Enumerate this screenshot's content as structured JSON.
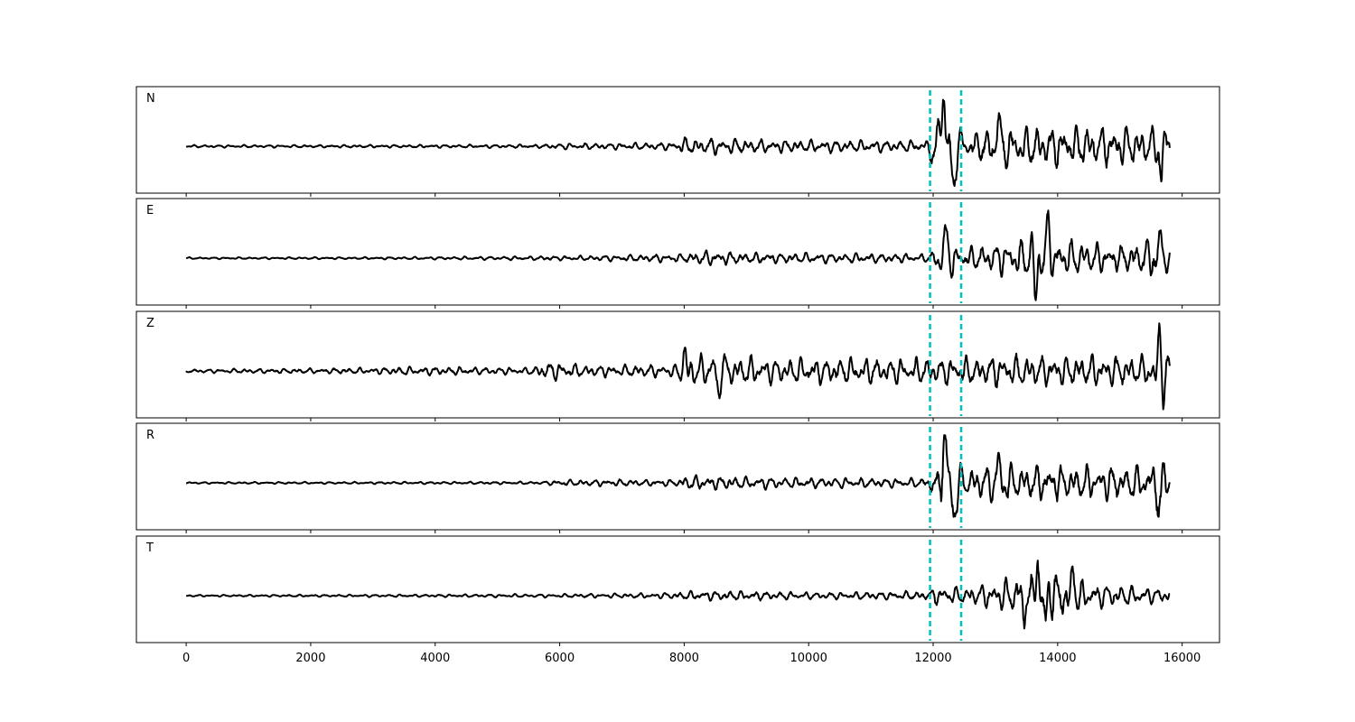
{
  "chart_data": {
    "type": "line",
    "title": "",
    "xlabel": "",
    "ylabel": "",
    "xlim": [
      -800,
      16600
    ],
    "xticks": [
      0,
      2000,
      4000,
      6000,
      8000,
      10000,
      12000,
      14000,
      16000
    ],
    "xtick_labels": [
      "0",
      "2000",
      "4000",
      "6000",
      "8000",
      "10000",
      "12000",
      "14000",
      "16000"
    ],
    "x_range": [
      0,
      15800
    ],
    "grid": false,
    "legend": "none",
    "markers": [
      {
        "x": 11950,
        "color": "#00c0c0",
        "style": "dashed"
      },
      {
        "x": 12450,
        "color": "#00c0c0",
        "style": "dashed"
      }
    ],
    "series": [
      {
        "name": "N",
        "color": "#000000",
        "envelope": [
          [
            0,
            0.03
          ],
          [
            2000,
            0.03
          ],
          [
            4000,
            0.035
          ],
          [
            5700,
            0.04
          ],
          [
            6000,
            0.07
          ],
          [
            7000,
            0.07
          ],
          [
            7900,
            0.1
          ],
          [
            8000,
            0.2
          ],
          [
            9500,
            0.15
          ],
          [
            11900,
            0.13
          ],
          [
            12000,
            0.4
          ],
          [
            12150,
            0.95
          ],
          [
            12300,
            0.45
          ],
          [
            12450,
            0.3
          ],
          [
            13000,
            0.45
          ],
          [
            14000,
            0.5
          ],
          [
            15000,
            0.45
          ],
          [
            15500,
            0.45
          ],
          [
            15650,
            0.75
          ],
          [
            15800,
            0.35
          ]
        ],
        "events": [
          [
            12150,
            1.0,
            120
          ],
          [
            12330,
            -0.78,
            90
          ],
          [
            15660,
            -0.8,
            60
          ],
          [
            13050,
            0.6,
            80
          ]
        ]
      },
      {
        "name": "E",
        "color": "#000000",
        "envelope": [
          [
            0,
            0.02
          ],
          [
            3000,
            0.025
          ],
          [
            5000,
            0.04
          ],
          [
            6500,
            0.06
          ],
          [
            8000,
            0.1
          ],
          [
            8300,
            0.17
          ],
          [
            9000,
            0.13
          ],
          [
            10000,
            0.12
          ],
          [
            11900,
            0.1
          ],
          [
            12200,
            0.35
          ],
          [
            12450,
            0.25
          ],
          [
            13000,
            0.35
          ],
          [
            13700,
            0.5
          ],
          [
            14000,
            0.45
          ],
          [
            15000,
            0.3
          ],
          [
            15600,
            0.5
          ],
          [
            15800,
            0.25
          ]
        ],
        "events": [
          [
            12200,
            0.55,
            90
          ],
          [
            13650,
            -1.0,
            60
          ],
          [
            13850,
            0.75,
            80
          ],
          [
            15650,
            0.55,
            60
          ]
        ]
      },
      {
        "name": "Z",
        "color": "#000000",
        "envelope": [
          [
            0,
            0.04
          ],
          [
            1000,
            0.05
          ],
          [
            3000,
            0.07
          ],
          [
            3500,
            0.1
          ],
          [
            5500,
            0.08
          ],
          [
            5800,
            0.22
          ],
          [
            6500,
            0.13
          ],
          [
            7900,
            0.15
          ],
          [
            8000,
            0.4
          ],
          [
            8500,
            0.35
          ],
          [
            9500,
            0.3
          ],
          [
            11000,
            0.3
          ],
          [
            12000,
            0.3
          ],
          [
            13000,
            0.35
          ],
          [
            15500,
            0.35
          ],
          [
            15650,
            0.6
          ],
          [
            15800,
            0.35
          ]
        ],
        "events": [
          [
            15650,
            1.0,
            70
          ],
          [
            15700,
            -0.65,
            60
          ],
          [
            8550,
            -0.5,
            70
          ],
          [
            8000,
            0.42,
            70
          ]
        ]
      },
      {
        "name": "R",
        "color": "#000000",
        "envelope": [
          [
            0,
            0.02
          ],
          [
            5700,
            0.03
          ],
          [
            6000,
            0.07
          ],
          [
            7900,
            0.08
          ],
          [
            8000,
            0.17
          ],
          [
            9500,
            0.13
          ],
          [
            11900,
            0.1
          ],
          [
            12000,
            0.35
          ],
          [
            12150,
            0.95
          ],
          [
            12350,
            0.55
          ],
          [
            12450,
            0.3
          ],
          [
            13000,
            0.45
          ],
          [
            14000,
            0.4
          ],
          [
            15500,
            0.4
          ],
          [
            15650,
            0.75
          ],
          [
            15800,
            0.3
          ]
        ],
        "events": [
          [
            12170,
            0.95,
            110
          ],
          [
            12350,
            -0.65,
            80
          ],
          [
            15640,
            -0.78,
            60
          ],
          [
            13050,
            0.55,
            70
          ]
        ]
      },
      {
        "name": "T",
        "color": "#000000",
        "envelope": [
          [
            0,
            0.02
          ],
          [
            4000,
            0.03
          ],
          [
            6000,
            0.04
          ],
          [
            7500,
            0.06
          ],
          [
            8500,
            0.12
          ],
          [
            10000,
            0.08
          ],
          [
            11900,
            0.1
          ],
          [
            12000,
            0.2
          ],
          [
            12450,
            0.2
          ],
          [
            13000,
            0.3
          ],
          [
            13650,
            0.7
          ],
          [
            13800,
            0.6
          ],
          [
            14200,
            0.45
          ],
          [
            14500,
            0.3
          ],
          [
            15800,
            0.15
          ]
        ],
        "events": [
          [
            13670,
            1.0,
            60
          ],
          [
            13800,
            -0.65,
            60
          ],
          [
            13450,
            -0.5,
            60
          ],
          [
            14250,
            0.5,
            80
          ]
        ]
      }
    ]
  }
}
